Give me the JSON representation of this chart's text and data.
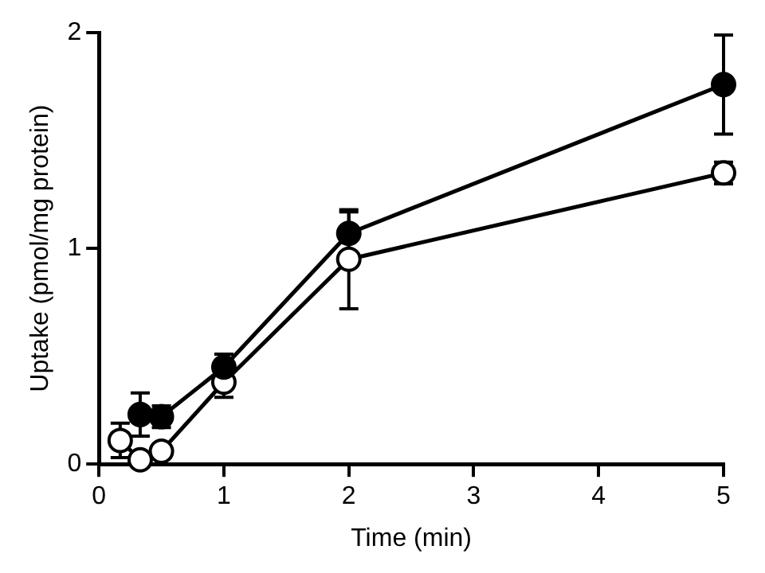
{
  "chart_data": {
    "type": "line",
    "xlabel": "Time (min)",
    "ylabel": "Uptake (pmol/mg protein)",
    "xlim": [
      0,
      5
    ],
    "xticks": [
      0,
      1,
      2,
      3,
      4,
      5
    ],
    "ylim": [
      0,
      2
    ],
    "yticks": [
      0,
      1,
      2
    ],
    "grid": false,
    "legend": false,
    "marker": "circle",
    "line_style": "solid",
    "series": [
      {
        "color": "#000000",
        "x": [
          0.33,
          0.5,
          1,
          2,
          5
        ],
        "values": [
          0.23,
          0.22,
          0.45,
          1.07,
          1.76
        ],
        "errors": [
          0.1,
          0.05,
          0.06,
          0.1,
          0.23
        ]
      },
      {
        "color": "#ffffff",
        "x": [
          0.17,
          0.33,
          0.5,
          1,
          2,
          5
        ],
        "values": [
          0.11,
          0.02,
          0.06,
          0.38,
          0.95,
          1.35
        ],
        "errors": [
          0.08,
          null,
          null,
          0.07,
          0.23,
          0.05
        ]
      }
    ]
  }
}
